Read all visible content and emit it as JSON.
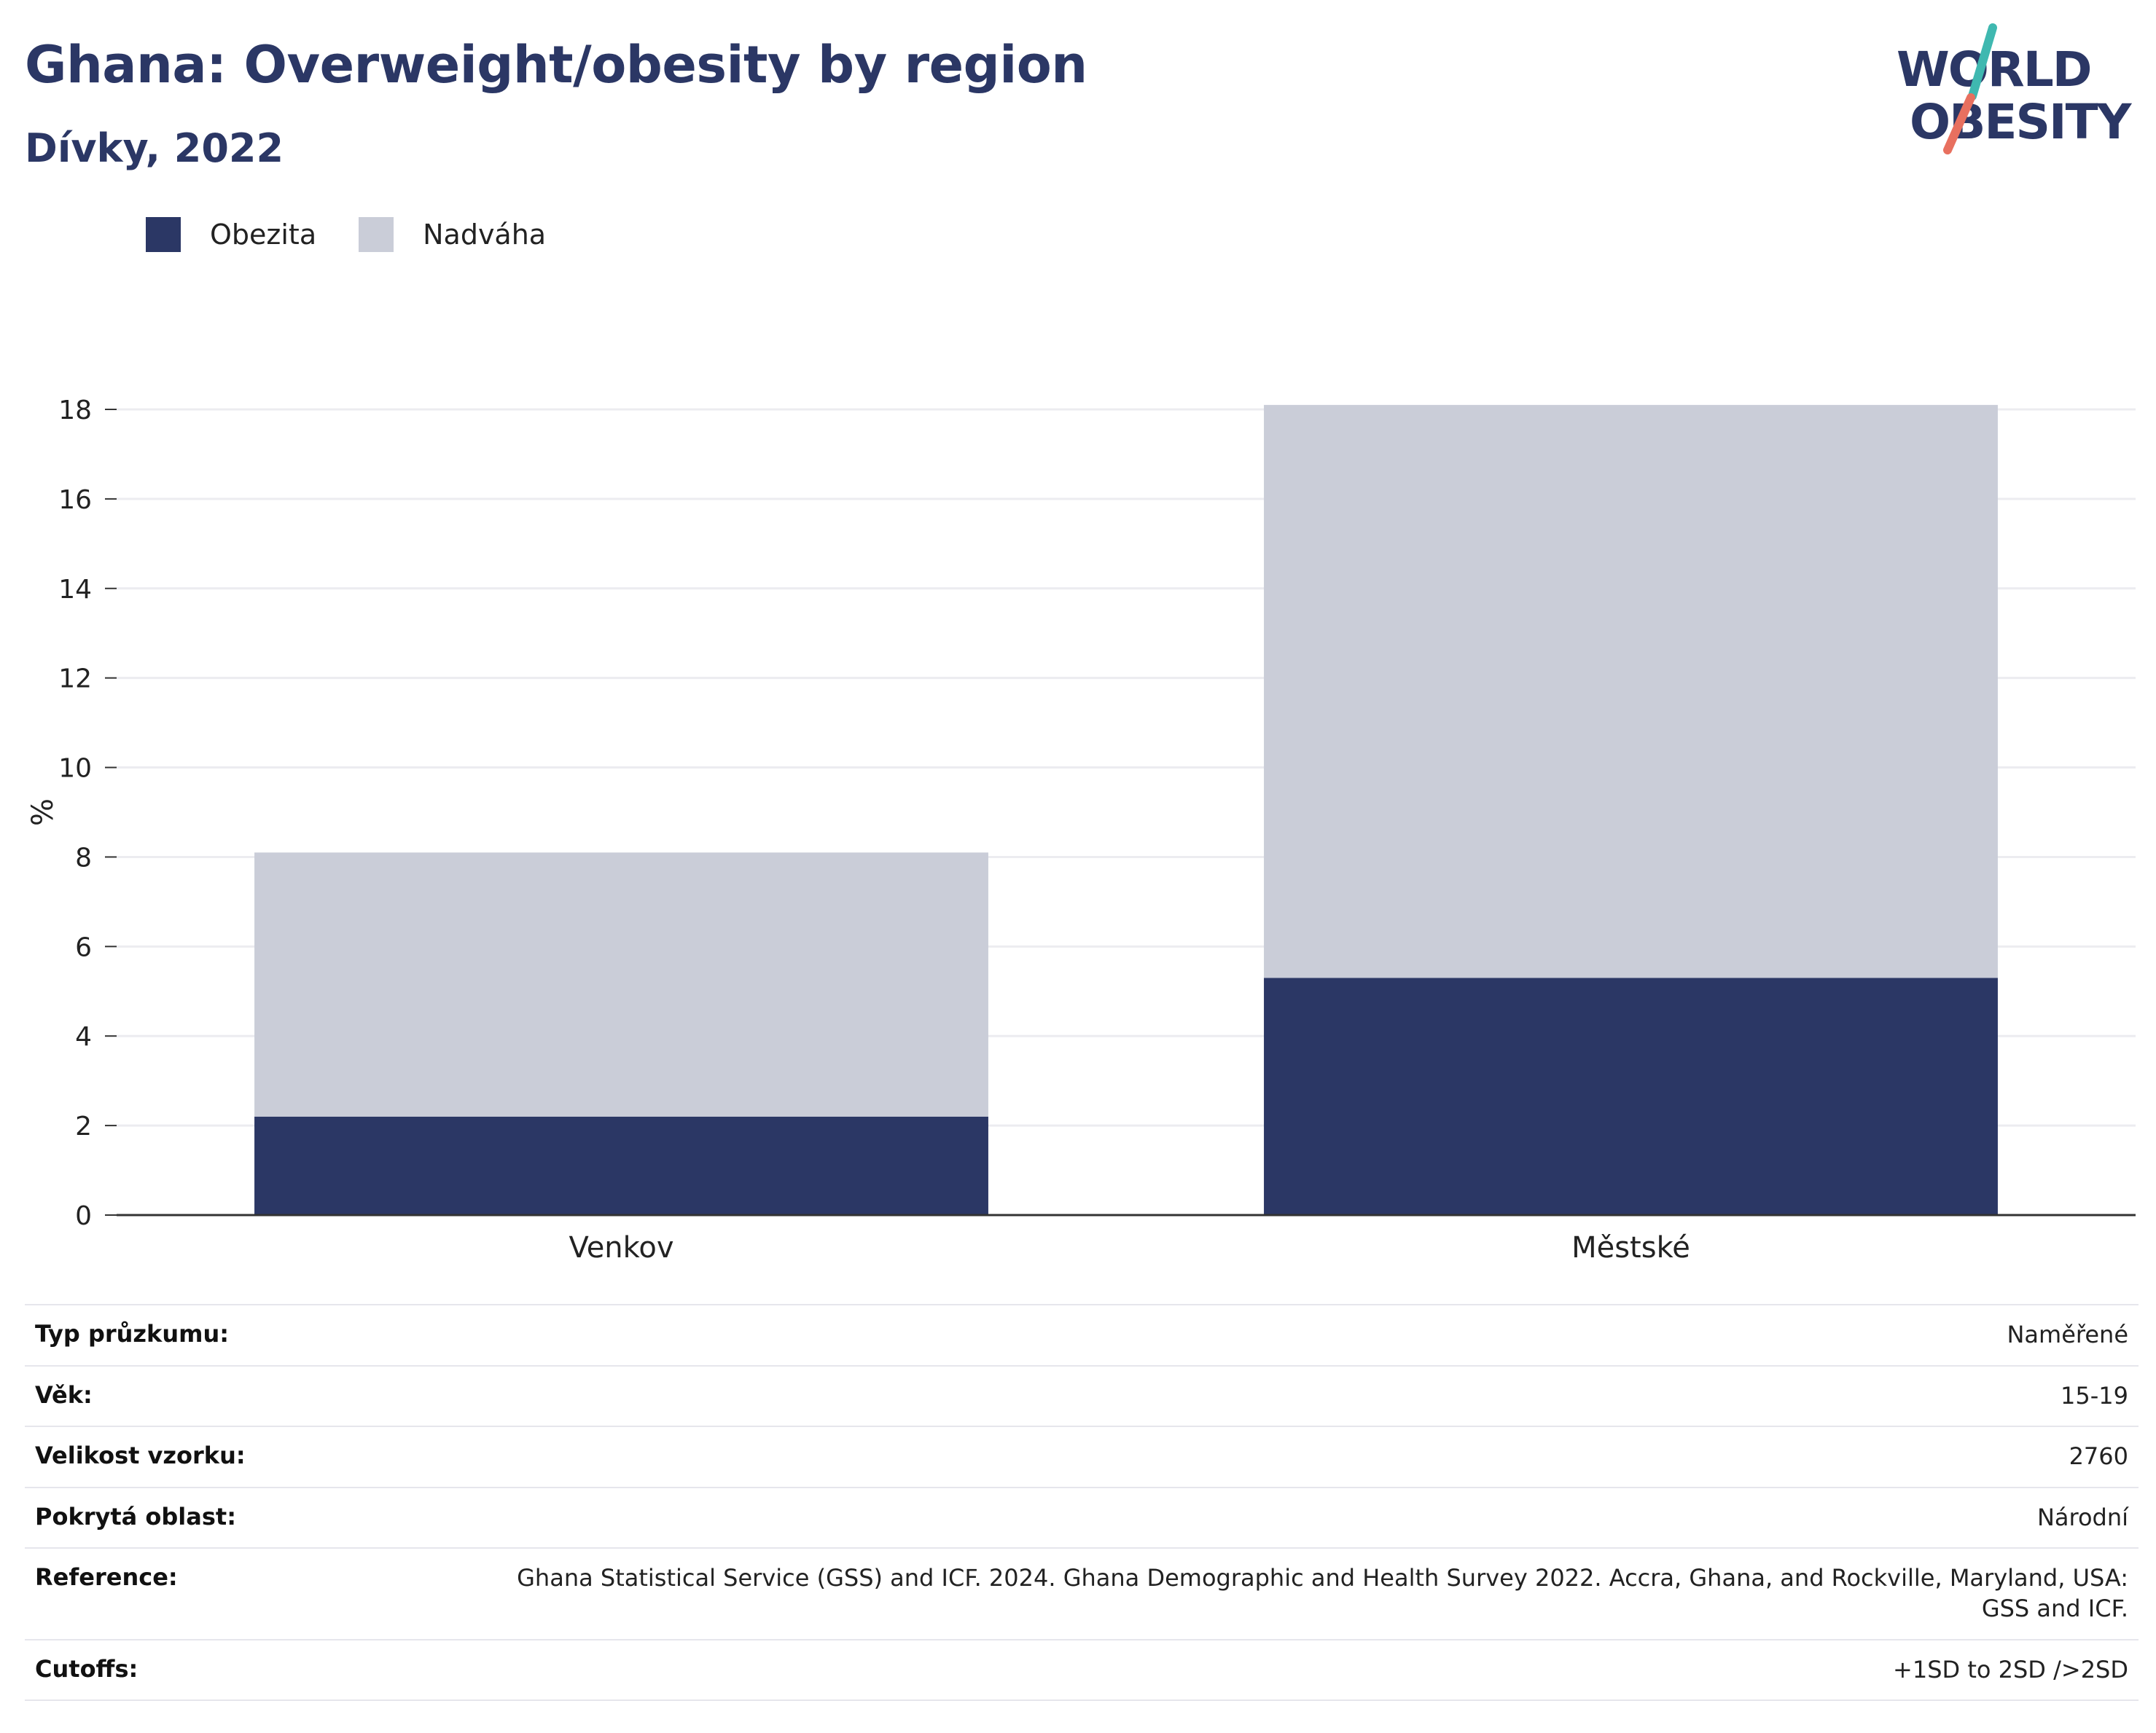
{
  "header": {
    "title": "Ghana: Overweight/obesity by region",
    "subtitle": "Dívky, 2022"
  },
  "logo": {
    "line1": "WORLD",
    "line2": "OBESITY"
  },
  "colors": {
    "obesity": "#2b3765",
    "overweight": "#cacdd8",
    "grid": "#ececf0",
    "axis": "#333333",
    "logo_text": "#2b3765",
    "logo_teal": "#3fb8b0",
    "logo_coral": "#e8705f"
  },
  "legend": [
    {
      "label": "Obezita",
      "color_key": "obesity"
    },
    {
      "label": "Nadváha",
      "color_key": "overweight"
    }
  ],
  "chart_data": {
    "type": "bar",
    "stacked": true,
    "categories": [
      "Venkov",
      "Městské"
    ],
    "series": [
      {
        "name": "Obezita",
        "values": [
          2.2,
          5.3
        ]
      },
      {
        "name": "Nadváha",
        "values": [
          5.9,
          12.8
        ]
      }
    ],
    "ylabel": "%",
    "ylim": [
      0,
      18
    ],
    "yticks": [
      0,
      2,
      4,
      6,
      8,
      10,
      12,
      14,
      16,
      18
    ],
    "grid": true,
    "legend_position": "top-left"
  },
  "info": [
    {
      "key": "Typ průzkumu:",
      "value": "Naměřené"
    },
    {
      "key": "Věk:",
      "value": "15-19"
    },
    {
      "key": "Velikost vzorku:",
      "value": "2760"
    },
    {
      "key": "Pokrytá oblast:",
      "value": "Národní"
    },
    {
      "key": "Reference:",
      "value": "Ghana Statistical Service (GSS) and ICF. 2024. Ghana Demographic and Health Survey 2022. Accra, Ghana, and Rockville, Maryland, USA: GSS and ICF."
    },
    {
      "key": "Cutoffs:",
      "value": "+1SD to 2SD />2SD"
    }
  ]
}
